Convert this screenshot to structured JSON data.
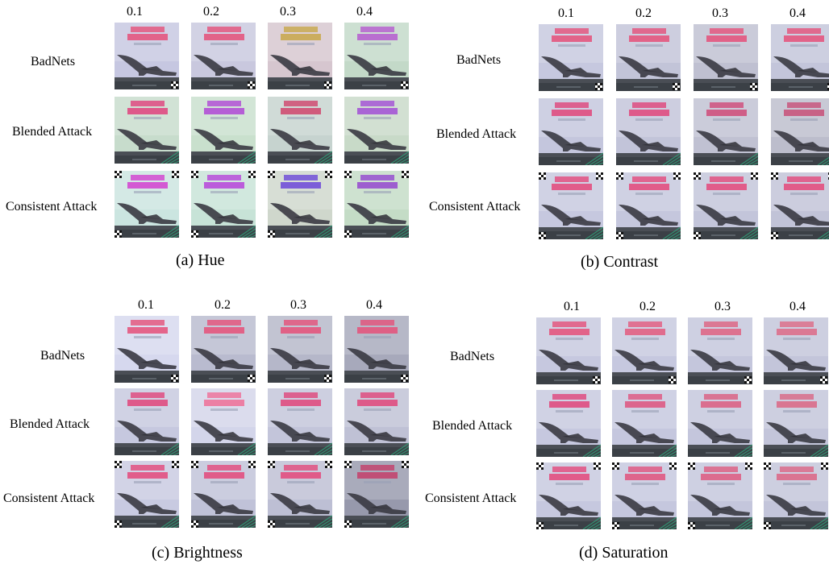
{
  "figure": {
    "column_headers": [
      "0.1",
      "0.2",
      "0.3",
      "0.4"
    ],
    "row_labels": [
      "BadNets",
      "Blended Attack",
      "Consistent Attack"
    ],
    "panels": [
      {
        "caption": "(a)  Hue",
        "factor": "hue",
        "tints": [
          [
            "#c6c7e1",
            "#c9c8de",
            "#d6c6cf",
            "#c3d9c8"
          ],
          [
            "#c7dccc",
            "#c9e0cd",
            "#c6d3cf",
            "#c8dac8"
          ],
          [
            "#cbe5e0",
            "#c7e3d7",
            "#cfd7cc",
            "#c4dcc6"
          ]
        ],
        "text_colors": [
          [
            "#e55079",
            "#e55079",
            "#c8a74a",
            "#b55ad0"
          ],
          [
            "#e0417c",
            "#b047d6",
            "#d0446c",
            "#a24dd6"
          ],
          [
            "#d23fd0",
            "#b743da",
            "#6c47d8",
            "#9447cf"
          ]
        ]
      },
      {
        "caption": "(b)  Contrast",
        "factor": "contrast",
        "tints": [
          [
            "#c6c8df",
            "#c2c4d8",
            "#bfc0d1",
            "#c3c5da"
          ],
          [
            "#c4c6dd",
            "#c2c4d9",
            "#c0c1d2",
            "#bcbdcc"
          ],
          [
            "#c6c8df",
            "#c5c7dd",
            "#c3c5da",
            "#c1c3d7"
          ]
        ],
        "text_colors": [
          [
            "#e55079",
            "#e55079",
            "#e55079",
            "#e55079"
          ],
          [
            "#e0457a",
            "#e0457a",
            "#d04a78",
            "#c85078"
          ],
          [
            "#e4487a",
            "#e4487a",
            "#e4487a",
            "#e4487a"
          ]
        ]
      },
      {
        "caption": "(c)  Brightness",
        "factor": "brightness",
        "tints": [
          [
            "#d6d8ee",
            "#b9bbcf",
            "#b5b7c9",
            "#a7a9bb"
          ],
          [
            "#c6c8df",
            "#d3d5ea",
            "#c3c5da",
            "#bfc1d5"
          ],
          [
            "#c8cae1",
            "#c0c2d8",
            "#bdbfd4",
            "#9799ac"
          ]
        ],
        "text_colors": [
          [
            "#e55079",
            "#e55079",
            "#e55079",
            "#e55079"
          ],
          [
            "#e0457a",
            "#ef6e97",
            "#e0457a",
            "#e0457a"
          ],
          [
            "#e4487a",
            "#e4487a",
            "#e4487a",
            "#c43e6a"
          ]
        ]
      },
      {
        "caption": "(d)  Saturation",
        "factor": "saturation",
        "tints": [
          [
            "#c6c8df",
            "#c6c8df",
            "#c4c6dc",
            "#c3c5da"
          ],
          [
            "#c6c8df",
            "#c5c7de",
            "#c4c6dc",
            "#c3c5da"
          ],
          [
            "#c6c8df",
            "#c5c7de",
            "#c4c6dc",
            "#c3c5da"
          ]
        ],
        "text_colors": [
          [
            "#e55079",
            "#e35a7e",
            "#df6181",
            "#dd6a86"
          ],
          [
            "#e0457a",
            "#de547e",
            "#dc5d80",
            "#da6684"
          ],
          [
            "#e4487a",
            "#e0527d",
            "#de5b80",
            "#dc6484"
          ]
        ]
      }
    ]
  }
}
